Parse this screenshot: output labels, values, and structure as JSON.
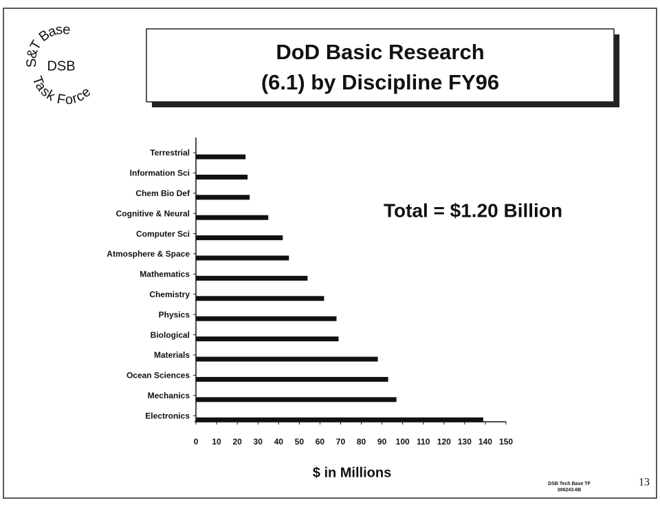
{
  "logo": {
    "top": "S&T Base",
    "middle": "DSB",
    "bottom": "Task Force"
  },
  "chart_data": {
    "type": "bar",
    "orientation": "horizontal",
    "title": [
      "DoD Basic Research",
      "(6.1) by Discipline FY96"
    ],
    "annotation": "Total = $1.20 Billion",
    "x_label": "$ in Millions",
    "categories": [
      "Terrestrial",
      "Information Sci",
      "Chem Bio Def",
      "Cognitive & Neural",
      "Computer Sci",
      "Atmosphere & Space",
      "Mathematics",
      "Chemistry",
      "Physics",
      "Biological",
      "Materials",
      "Ocean Sciences",
      "Mechanics",
      "Electronics"
    ],
    "values": [
      24,
      25,
      26,
      35,
      42,
      45,
      54,
      62,
      68,
      69,
      88,
      93,
      97,
      139
    ],
    "color": "#111111",
    "xlim": [
      0,
      150
    ],
    "xticks": [
      0,
      10,
      20,
      30,
      40,
      50,
      60,
      70,
      80,
      90,
      100,
      110,
      120,
      130,
      140,
      150
    ],
    "grid": false
  },
  "footer": {
    "source": "DSB Tech Base TF",
    "code": "306243-6B",
    "page": "13"
  }
}
